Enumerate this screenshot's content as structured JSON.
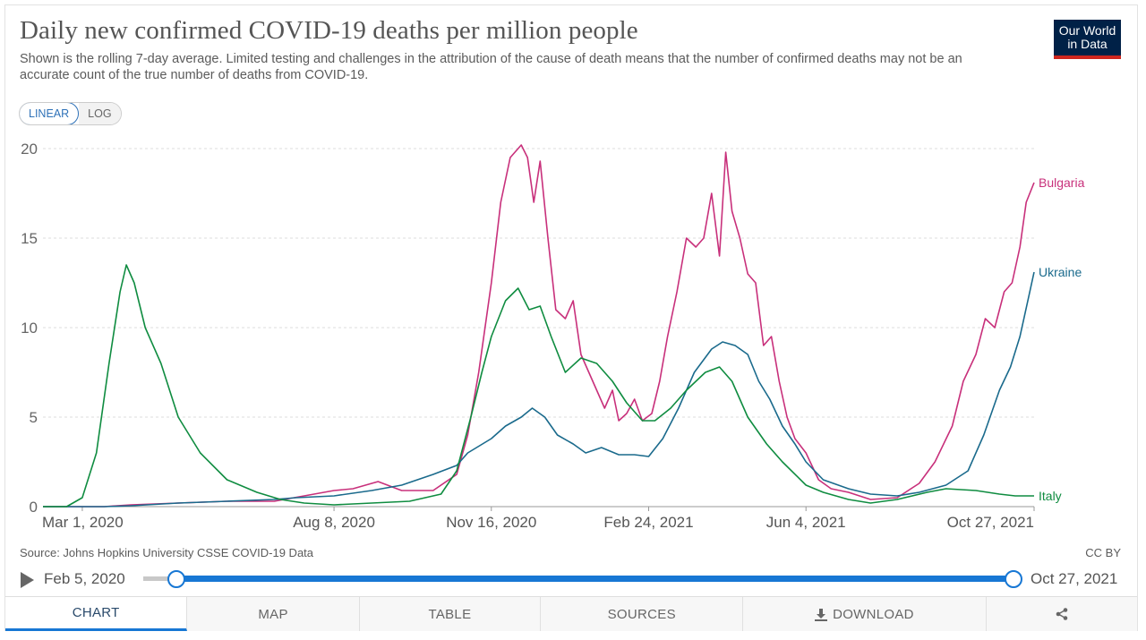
{
  "header": {
    "title": "Daily new confirmed COVID-19 deaths per million people",
    "subtitle": "Shown is the rolling 7-day average. Limited testing and challenges in the attribution of the cause of death means that the number of confirmed deaths may not be an accurate count of the true number of deaths from COVID-19.",
    "logo_line1": "Our World",
    "logo_line2": "in Data"
  },
  "controls": {
    "linear_label": "LINEAR",
    "log_label": "LOG",
    "active_scale": "linear"
  },
  "chart_data": {
    "type": "line",
    "x_start": "2020-02-05",
    "x_end": "2021-10-27",
    "x_ticks": [
      "Mar 1, 2020",
      "Aug 8, 2020",
      "Nov 16, 2020",
      "Feb 24, 2021",
      "Jun 4, 2021",
      "Oct 27, 2021"
    ],
    "x_tick_dates": [
      "2020-03-01",
      "2020-08-08",
      "2020-11-16",
      "2021-02-24",
      "2021-06-04",
      "2021-10-27"
    ],
    "ylim": [
      0,
      20
    ],
    "y_ticks": [
      0,
      5,
      10,
      15,
      20
    ],
    "grid": "horizontal-dashed",
    "series": [
      {
        "name": "Bulgaria",
        "color": "#c8307b",
        "points": [
          [
            "2020-02-05",
            0
          ],
          [
            "2020-03-15",
            0
          ],
          [
            "2020-04-01",
            0.1
          ],
          [
            "2020-05-01",
            0.2
          ],
          [
            "2020-06-01",
            0.3
          ],
          [
            "2020-07-01",
            0.3
          ],
          [
            "2020-07-20",
            0.6
          ],
          [
            "2020-08-08",
            0.9
          ],
          [
            "2020-08-20",
            1.0
          ],
          [
            "2020-09-05",
            1.4
          ],
          [
            "2020-09-20",
            0.9
          ],
          [
            "2020-10-10",
            0.9
          ],
          [
            "2020-10-25",
            1.8
          ],
          [
            "2020-11-01",
            4.0
          ],
          [
            "2020-11-08",
            7.5
          ],
          [
            "2020-11-16",
            12.5
          ],
          [
            "2020-11-22",
            17.0
          ],
          [
            "2020-11-28",
            19.5
          ],
          [
            "2020-12-05",
            20.2
          ],
          [
            "2020-12-09",
            19.5
          ],
          [
            "2020-12-13",
            17.0
          ],
          [
            "2020-12-17",
            19.3
          ],
          [
            "2020-12-22",
            15.0
          ],
          [
            "2020-12-27",
            11.0
          ],
          [
            "2021-01-02",
            10.5
          ],
          [
            "2021-01-07",
            11.5
          ],
          [
            "2021-01-12",
            8.5
          ],
          [
            "2021-01-17",
            7.5
          ],
          [
            "2021-01-22",
            6.5
          ],
          [
            "2021-01-27",
            5.5
          ],
          [
            "2021-02-01",
            6.5
          ],
          [
            "2021-02-05",
            4.8
          ],
          [
            "2021-02-10",
            5.2
          ],
          [
            "2021-02-15",
            6.0
          ],
          [
            "2021-02-20",
            4.8
          ],
          [
            "2021-02-26",
            5.2
          ],
          [
            "2021-03-03",
            7.0
          ],
          [
            "2021-03-08",
            9.5
          ],
          [
            "2021-03-14",
            12.0
          ],
          [
            "2021-03-20",
            15.0
          ],
          [
            "2021-03-26",
            14.5
          ],
          [
            "2021-03-31",
            15.0
          ],
          [
            "2021-04-05",
            17.5
          ],
          [
            "2021-04-10",
            14.0
          ],
          [
            "2021-04-14",
            19.8
          ],
          [
            "2021-04-18",
            16.5
          ],
          [
            "2021-04-23",
            15.0
          ],
          [
            "2021-04-28",
            13.0
          ],
          [
            "2021-05-03",
            12.5
          ],
          [
            "2021-05-08",
            9.0
          ],
          [
            "2021-05-13",
            9.5
          ],
          [
            "2021-05-18",
            7.0
          ],
          [
            "2021-05-23",
            5.0
          ],
          [
            "2021-05-28",
            3.8
          ],
          [
            "2021-06-04",
            3.0
          ],
          [
            "2021-06-12",
            1.5
          ],
          [
            "2021-06-20",
            1.0
          ],
          [
            "2021-07-01",
            0.8
          ],
          [
            "2021-07-15",
            0.4
          ],
          [
            "2021-08-01",
            0.5
          ],
          [
            "2021-08-15",
            1.3
          ],
          [
            "2021-08-25",
            2.5
          ],
          [
            "2021-09-05",
            4.5
          ],
          [
            "2021-09-12",
            7.0
          ],
          [
            "2021-09-20",
            8.5
          ],
          [
            "2021-09-26",
            10.5
          ],
          [
            "2021-10-02",
            10.0
          ],
          [
            "2021-10-08",
            12.0
          ],
          [
            "2021-10-13",
            12.5
          ],
          [
            "2021-10-18",
            14.5
          ],
          [
            "2021-10-22",
            17.0
          ],
          [
            "2021-10-27",
            18.1
          ]
        ]
      },
      {
        "name": "Ukraine",
        "color": "#1a6a8c",
        "points": [
          [
            "2020-02-05",
            0
          ],
          [
            "2020-03-15",
            0
          ],
          [
            "2020-04-01",
            0.05
          ],
          [
            "2020-05-01",
            0.2
          ],
          [
            "2020-06-01",
            0.3
          ],
          [
            "2020-07-01",
            0.4
          ],
          [
            "2020-07-15",
            0.5
          ],
          [
            "2020-08-08",
            0.6
          ],
          [
            "2020-09-01",
            0.9
          ],
          [
            "2020-09-20",
            1.2
          ],
          [
            "2020-10-10",
            1.8
          ],
          [
            "2020-10-25",
            2.3
          ],
          [
            "2020-11-01",
            3.0
          ],
          [
            "2020-11-16",
            3.8
          ],
          [
            "2020-11-25",
            4.5
          ],
          [
            "2020-12-05",
            5.0
          ],
          [
            "2020-12-12",
            5.5
          ],
          [
            "2020-12-20",
            5.0
          ],
          [
            "2020-12-28",
            4.0
          ],
          [
            "2021-01-07",
            3.5
          ],
          [
            "2021-01-15",
            3.0
          ],
          [
            "2021-01-25",
            3.3
          ],
          [
            "2021-02-05",
            2.9
          ],
          [
            "2021-02-15",
            2.9
          ],
          [
            "2021-02-24",
            2.8
          ],
          [
            "2021-03-05",
            3.8
          ],
          [
            "2021-03-15",
            5.5
          ],
          [
            "2021-03-25",
            7.5
          ],
          [
            "2021-04-05",
            8.8
          ],
          [
            "2021-04-12",
            9.2
          ],
          [
            "2021-04-20",
            9.0
          ],
          [
            "2021-04-28",
            8.5
          ],
          [
            "2021-05-05",
            7.0
          ],
          [
            "2021-05-12",
            6.0
          ],
          [
            "2021-05-20",
            4.5
          ],
          [
            "2021-05-28",
            3.5
          ],
          [
            "2021-06-04",
            2.5
          ],
          [
            "2021-06-15",
            1.5
          ],
          [
            "2021-07-01",
            1.0
          ],
          [
            "2021-07-15",
            0.7
          ],
          [
            "2021-08-01",
            0.6
          ],
          [
            "2021-08-15",
            0.8
          ],
          [
            "2021-09-01",
            1.2
          ],
          [
            "2021-09-15",
            2.0
          ],
          [
            "2021-09-25",
            4.0
          ],
          [
            "2021-10-05",
            6.5
          ],
          [
            "2021-10-12",
            7.8
          ],
          [
            "2021-10-18",
            9.5
          ],
          [
            "2021-10-23",
            11.5
          ],
          [
            "2021-10-27",
            13.1
          ]
        ]
      },
      {
        "name": "Italy",
        "color": "#0f8c40",
        "points": [
          [
            "2020-02-05",
            0
          ],
          [
            "2020-02-20",
            0
          ],
          [
            "2020-03-01",
            0.5
          ],
          [
            "2020-03-10",
            3.0
          ],
          [
            "2020-03-18",
            8.0
          ],
          [
            "2020-03-25",
            12.0
          ],
          [
            "2020-03-29",
            13.5
          ],
          [
            "2020-04-03",
            12.5
          ],
          [
            "2020-04-10",
            10.0
          ],
          [
            "2020-04-20",
            8.0
          ],
          [
            "2020-05-01",
            5.0
          ],
          [
            "2020-05-15",
            3.0
          ],
          [
            "2020-06-01",
            1.5
          ],
          [
            "2020-06-20",
            0.8
          ],
          [
            "2020-07-05",
            0.4
          ],
          [
            "2020-07-20",
            0.2
          ],
          [
            "2020-08-08",
            0.1
          ],
          [
            "2020-09-01",
            0.2
          ],
          [
            "2020-09-25",
            0.3
          ],
          [
            "2020-10-15",
            0.7
          ],
          [
            "2020-10-25",
            2.0
          ],
          [
            "2020-11-03",
            5.0
          ],
          [
            "2020-11-10",
            7.5
          ],
          [
            "2020-11-16",
            9.5
          ],
          [
            "2020-11-25",
            11.5
          ],
          [
            "2020-12-03",
            12.2
          ],
          [
            "2020-12-10",
            11.0
          ],
          [
            "2020-12-17",
            11.2
          ],
          [
            "2020-12-24",
            9.5
          ],
          [
            "2021-01-02",
            7.5
          ],
          [
            "2021-01-12",
            8.3
          ],
          [
            "2021-01-22",
            8.0
          ],
          [
            "2021-02-01",
            7.0
          ],
          [
            "2021-02-10",
            5.8
          ],
          [
            "2021-02-20",
            4.8
          ],
          [
            "2021-02-28",
            4.8
          ],
          [
            "2021-03-10",
            5.5
          ],
          [
            "2021-03-20",
            6.5
          ],
          [
            "2021-04-01",
            7.5
          ],
          [
            "2021-04-10",
            7.8
          ],
          [
            "2021-04-18",
            7.0
          ],
          [
            "2021-04-28",
            5.0
          ],
          [
            "2021-05-10",
            3.5
          ],
          [
            "2021-05-20",
            2.5
          ],
          [
            "2021-06-04",
            1.2
          ],
          [
            "2021-06-15",
            0.8
          ],
          [
            "2021-07-01",
            0.4
          ],
          [
            "2021-07-15",
            0.2
          ],
          [
            "2021-08-01",
            0.4
          ],
          [
            "2021-08-20",
            0.8
          ],
          [
            "2021-09-01",
            1.0
          ],
          [
            "2021-09-20",
            0.9
          ],
          [
            "2021-10-05",
            0.7
          ],
          [
            "2021-10-15",
            0.6
          ],
          [
            "2021-10-27",
            0.6
          ]
        ]
      }
    ]
  },
  "footer": {
    "source": "Source: Johns Hopkins University CSSE COVID-19 Data",
    "license": "CC BY"
  },
  "timeline": {
    "start_label": "Feb 5, 2020",
    "end_label": "Oct 27, 2021"
  },
  "tabs": [
    {
      "label": "CHART",
      "active": true
    },
    {
      "label": "MAP",
      "active": false
    },
    {
      "label": "TABLE",
      "active": false
    },
    {
      "label": "SOURCES",
      "active": false
    },
    {
      "label": "DOWNLOAD",
      "active": false
    },
    {
      "label": "",
      "active": false
    }
  ],
  "icons": {
    "download": "download-icon",
    "share": "share-icon",
    "play": "play-icon"
  }
}
